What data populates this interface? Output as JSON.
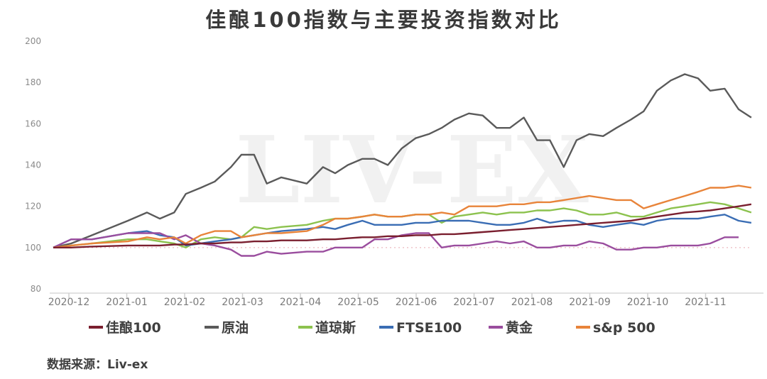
{
  "chart_data": {
    "type": "line",
    "title": "佳酿100指数与主要投资指数对比",
    "xlabel": "",
    "ylabel": "",
    "ylim": [
      80,
      200
    ],
    "yticks": [
      80,
      100,
      120,
      140,
      160,
      180,
      200
    ],
    "xticks": [
      "2020-12",
      "2021-01",
      "2021-02",
      "2021-03",
      "2021-04",
      "2021-05",
      "2021-06",
      "2021-07",
      "2021-08",
      "2021-09",
      "2021-10",
      "2021-11"
    ],
    "x_unit": "months since 2020-12",
    "x": [
      -0.27,
      0.04,
      0.4,
      1.02,
      1.35,
      1.57,
      1.82,
      2.02,
      2.28,
      2.52,
      2.8,
      2.98,
      3.2,
      3.42,
      3.67,
      4.11,
      4.39,
      4.6,
      4.82,
      5.07,
      5.28,
      5.51,
      5.75,
      5.99,
      6.22,
      6.44,
      6.66,
      6.91,
      7.15,
      7.39,
      7.62,
      7.86,
      8.09,
      8.31,
      8.55,
      8.77,
      8.99,
      9.23,
      9.46,
      9.71,
      9.93,
      10.16,
      10.4,
      10.64,
      10.87,
      11.08,
      11.33,
      11.57,
      11.79
    ],
    "grid": false,
    "legend_position": "bottom",
    "series": [
      {
        "name": "佳酿100",
        "color": "#7a1f2f",
        "values": [
          100,
          100,
          100.5,
          101,
          101,
          101,
          101.5,
          101.5,
          102,
          102,
          102.5,
          102.5,
          103,
          103,
          103.5,
          103.5,
          104,
          104,
          104.5,
          105,
          105,
          105.5,
          105.5,
          106,
          106,
          106.5,
          106.5,
          107,
          107.5,
          108,
          108.5,
          109,
          109.5,
          110,
          110.5,
          111,
          111.5,
          112,
          112.5,
          113,
          114,
          115,
          116,
          117,
          117.5,
          118,
          119,
          120,
          121
        ]
      },
      {
        "name": "原油",
        "color": "#5a5a5a",
        "values": [
          100,
          102,
          106,
          113,
          117,
          114,
          117,
          126,
          129,
          132,
          139,
          145,
          145,
          131,
          134,
          131,
          139,
          136,
          140,
          143,
          143,
          140,
          148,
          153,
          155,
          158,
          162,
          165,
          164,
          158,
          158,
          163,
          152,
          152,
          139,
          152,
          155,
          154,
          158,
          162,
          166,
          176,
          181,
          184,
          182,
          176,
          177,
          167,
          163
        ]
      },
      {
        "name": "道琼斯",
        "color": "#8cc24e",
        "values": [
          100,
          101,
          102,
          104,
          104,
          103,
          102,
          100,
          104,
          105,
          104,
          105,
          110,
          109,
          110,
          111,
          113,
          114,
          114,
          115,
          116,
          115,
          115,
          116,
          116,
          112,
          115,
          116,
          117,
          116,
          117,
          117,
          118,
          118,
          119,
          118,
          116,
          116,
          117,
          115,
          115,
          117,
          119,
          120,
          121,
          122,
          121,
          119,
          117
        ]
      },
      {
        "name": "FTSE100",
        "color": "#3a6db4",
        "values": [
          100,
          104,
          104,
          107,
          108,
          106,
          105,
          101,
          102,
          103,
          104,
          105,
          106,
          107,
          108,
          109,
          110,
          109,
          111,
          113,
          111,
          111,
          111,
          112,
          112,
          113,
          113,
          113,
          112,
          111,
          111,
          112,
          114,
          112,
          113,
          113,
          111,
          110,
          111,
          112,
          111,
          113,
          114,
          114,
          114,
          115,
          116,
          113,
          112
        ]
      },
      {
        "name": "黄金",
        "color": "#9a4d9e",
        "values": [
          100,
          104,
          104,
          107,
          107,
          107,
          104,
          106,
          102,
          101,
          99,
          96,
          96,
          98,
          97,
          98,
          98,
          100,
          100,
          100,
          104,
          104,
          106,
          107,
          107,
          100,
          101,
          101,
          102,
          103,
          102,
          103,
          100,
          100,
          101,
          101,
          103,
          102,
          99,
          99,
          100,
          100,
          101,
          101,
          101,
          102,
          105,
          105,
          null
        ]
      },
      {
        "name": "s&p 500",
        "color": "#e8843a",
        "values": [
          100,
          101,
          102,
          103,
          105,
          104,
          105,
          102,
          106,
          108,
          108,
          105,
          106,
          107,
          107,
          108,
          111,
          114,
          114,
          115,
          116,
          115,
          115,
          116,
          116,
          117,
          116,
          120,
          120,
          120,
          121,
          121,
          122,
          122,
          123,
          124,
          125,
          124,
          123,
          123,
          119,
          121,
          123,
          125,
          127,
          129,
          129,
          130,
          129
        ]
      }
    ],
    "watermark": "LIV-EX",
    "source": "数据来源：Liv-ex"
  }
}
